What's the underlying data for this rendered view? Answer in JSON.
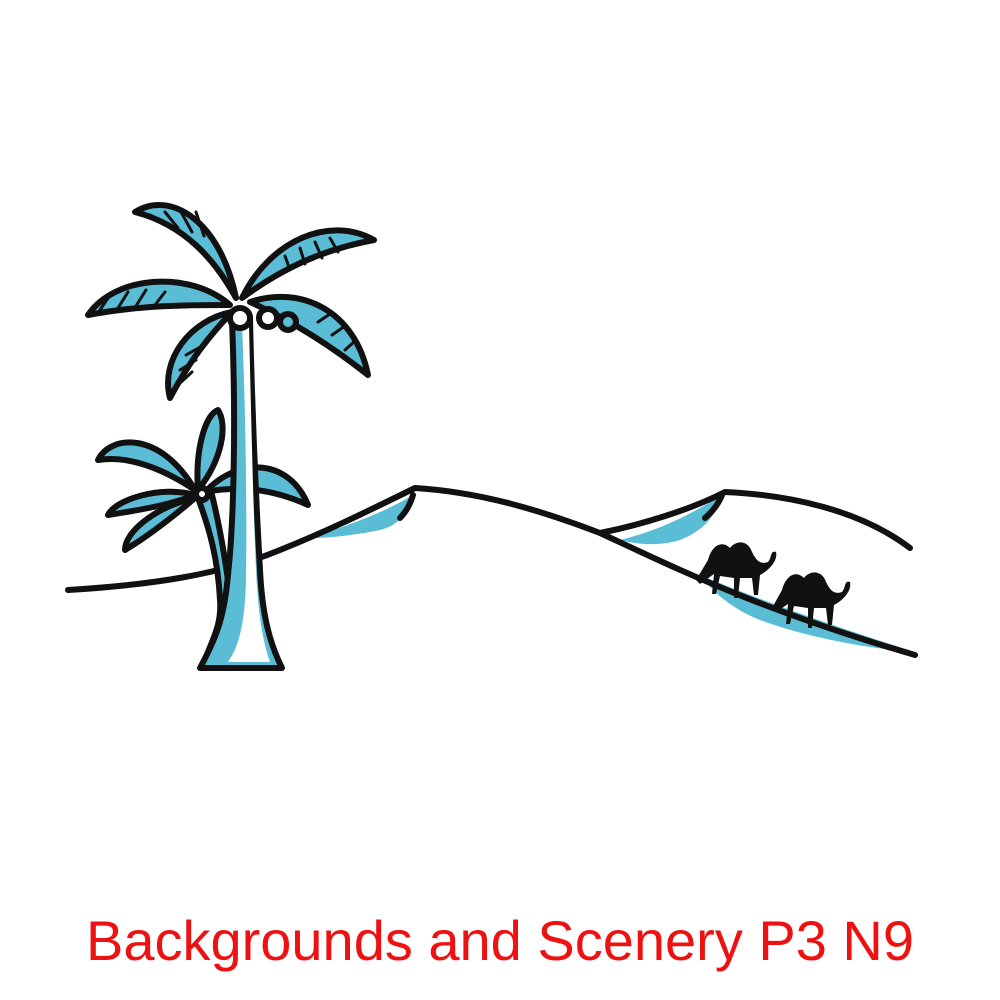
{
  "caption": {
    "text": "Backgrounds and Scenery P3 N9"
  },
  "colors": {
    "ink": "#111111",
    "accent": "#5bbcd6",
    "background": "#ffffff",
    "caption": "#ee1111"
  },
  "illustration": {
    "elements": [
      "palm-tree-large",
      "palm-tree-small",
      "sand-dunes",
      "camels"
    ],
    "camel_count": 2
  }
}
